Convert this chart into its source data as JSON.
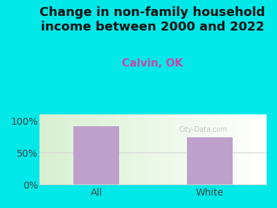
{
  "title": "Change in non-family household\nincome between 2000 and 2022",
  "subtitle": "Calvin, OK",
  "categories": [
    "All",
    "White"
  ],
  "values": [
    91,
    74
  ],
  "bar_color": "#bf9fcc",
  "background_color": "#00e8e8",
  "plot_bg_start": "#d8f0d0",
  "plot_bg_end": "#ffffff",
  "title_fontsize": 13,
  "subtitle_fontsize": 11,
  "tick_label_fontsize": 10,
  "title_color": "#111111",
  "subtitle_color": "#cc44aa",
  "ytick_color": "#444444",
  "xtick_color": "#444444",
  "ylim": [
    0,
    110
  ],
  "yticks": [
    0,
    50,
    100
  ],
  "ytick_labels": [
    "0%",
    "50%",
    "100%"
  ]
}
